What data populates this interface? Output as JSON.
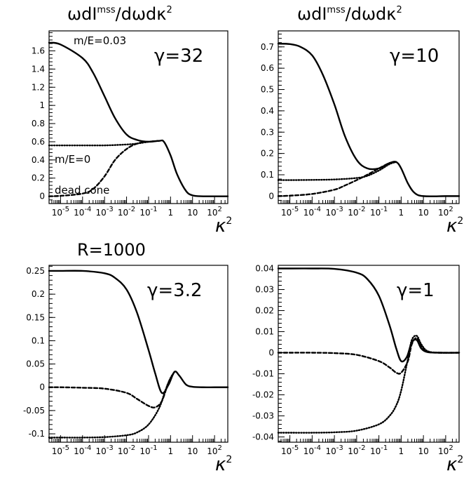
{
  "header": {
    "left_title": "ωdI",
    "right_title": "ωdI",
    "superscript": "mss",
    "fraction": "/dωdκ",
    "squared": "2",
    "r_label": "R=1000"
  },
  "chart_data": [
    {
      "type": "line",
      "panel": "top-left",
      "gamma_label": "γ=32",
      "xlabel": "κ",
      "xlabel_sup": "2",
      "x_scale": "log",
      "xlim": [
        3e-06,
        400
      ],
      "ylim": [
        -0.08,
        1.82
      ],
      "y_ticks": [
        0,
        0.2,
        0.4,
        0.6,
        0.8,
        1,
        1.2,
        1.4,
        1.6
      ],
      "y_tick_labels": [
        "0",
        "0.2",
        "0.4",
        "0.6",
        "0.8",
        "1",
        "1.2",
        "1.4",
        "1.6"
      ],
      "x_ticks": [
        1e-05,
        0.0001,
        0.001,
        0.01,
        0.1,
        1,
        10,
        100
      ],
      "x_tick_labels": [
        [
          "10",
          "-5"
        ],
        [
          "10",
          "-4"
        ],
        [
          "10",
          "-3"
        ],
        [
          "10",
          "-2"
        ],
        [
          "10",
          "-1"
        ],
        [
          "1",
          ""
        ],
        [
          "10",
          ""
        ],
        [
          "10",
          "2"
        ]
      ],
      "annotations": [
        "m/E=0.03",
        "m/E=0",
        "dead  cone"
      ],
      "series": [
        {
          "style": "solid",
          "x": [
            3e-06,
            1e-05,
            0.0001,
            0.0003,
            0.001,
            0.003,
            0.01,
            0.03,
            0.1,
            0.3,
            0.5,
            1,
            2,
            5,
            10,
            30,
            100,
            400
          ],
          "values": [
            1.69,
            1.67,
            1.52,
            1.36,
            1.1,
            0.86,
            0.68,
            0.62,
            0.6,
            0.61,
            0.6,
            0.45,
            0.24,
            0.06,
            0.01,
            0.0,
            0.0,
            0.0
          ]
        },
        {
          "style": "dotted",
          "x": [
            3e-06,
            1e-05,
            0.0001,
            0.001,
            0.01,
            0.03,
            0.1,
            0.3
          ],
          "values": [
            0.56,
            0.56,
            0.56,
            0.56,
            0.57,
            0.58,
            0.6,
            0.61
          ]
        },
        {
          "style": "dashed",
          "x": [
            3e-06,
            1e-05,
            0.0001,
            0.0003,
            0.001,
            0.003,
            0.01,
            0.03,
            0.1,
            0.3
          ],
          "values": [
            0.0,
            0.005,
            0.03,
            0.08,
            0.22,
            0.4,
            0.52,
            0.58,
            0.6,
            0.61
          ]
        }
      ]
    },
    {
      "type": "line",
      "panel": "top-right",
      "gamma_label": "γ=10",
      "xlabel": "κ",
      "xlabel_sup": "2",
      "x_scale": "log",
      "xlim": [
        3e-06,
        400
      ],
      "ylim": [
        -0.035,
        0.775
      ],
      "y_ticks": [
        0,
        0.1,
        0.2,
        0.3,
        0.4,
        0.5,
        0.6,
        0.7
      ],
      "y_tick_labels": [
        "0",
        "0.1",
        "0.2",
        "0.3",
        "0.4",
        "0.5",
        "0.6",
        "0.7"
      ],
      "x_ticks": [
        1e-05,
        0.0001,
        0.001,
        0.01,
        0.1,
        1,
        10,
        100
      ],
      "x_tick_labels": [
        [
          "10",
          "-5"
        ],
        [
          "10",
          "-4"
        ],
        [
          "10",
          "-3"
        ],
        [
          "10",
          "-2"
        ],
        [
          "10",
          "-1"
        ],
        [
          "1",
          ""
        ],
        [
          "10",
          ""
        ],
        [
          "10",
          "2"
        ]
      ],
      "series": [
        {
          "style": "solid",
          "x": [
            3e-06,
            1e-05,
            3e-05,
            0.0001,
            0.0003,
            0.001,
            0.003,
            0.01,
            0.03,
            0.1,
            0.3,
            0.6,
            1,
            2,
            4,
            10,
            100,
            400
          ],
          "values": [
            0.715,
            0.713,
            0.7,
            0.66,
            0.57,
            0.43,
            0.28,
            0.17,
            0.13,
            0.13,
            0.155,
            0.16,
            0.13,
            0.06,
            0.015,
            0.0,
            0.0,
            0.0
          ]
        },
        {
          "style": "dotted",
          "x": [
            3e-06,
            1e-05,
            0.0001,
            0.001,
            0.01,
            0.03,
            0.1,
            0.3,
            0.6
          ],
          "values": [
            0.075,
            0.075,
            0.076,
            0.078,
            0.085,
            0.095,
            0.12,
            0.15,
            0.16
          ]
        },
        {
          "style": "dashed",
          "x": [
            3e-06,
            1e-05,
            0.0001,
            0.001,
            0.003,
            0.01,
            0.03,
            0.1,
            0.3,
            0.6
          ],
          "values": [
            0.0,
            0.002,
            0.01,
            0.03,
            0.05,
            0.075,
            0.1,
            0.13,
            0.155,
            0.16
          ]
        }
      ]
    },
    {
      "type": "line",
      "panel": "bottom-left",
      "gamma_label": "γ=3.2",
      "xlabel": "κ",
      "xlabel_sup": "2",
      "x_scale": "log",
      "xlim": [
        3e-06,
        400
      ],
      "ylim": [
        -0.118,
        0.262
      ],
      "y_ticks": [
        -0.1,
        -0.05,
        0,
        0.05,
        0.1,
        0.15,
        0.2,
        0.25
      ],
      "y_tick_labels": [
        "-0.1",
        "-0.05",
        "0",
        "0.05",
        "0.1",
        "0.15",
        "0.2",
        "0.25"
      ],
      "x_ticks": [
        1e-05,
        0.0001,
        0.001,
        0.01,
        0.1,
        1,
        10,
        100
      ],
      "x_tick_labels": [
        [
          "10",
          "-5"
        ],
        [
          "10",
          "-4"
        ],
        [
          "10",
          "-3"
        ],
        [
          "10",
          "-2"
        ],
        [
          "10",
          "-1"
        ],
        [
          "1",
          ""
        ],
        [
          "10",
          ""
        ],
        [
          "10",
          "2"
        ]
      ],
      "series": [
        {
          "style": "solid",
          "x": [
            3e-06,
            1e-05,
            0.0001,
            0.001,
            0.003,
            0.01,
            0.03,
            0.1,
            0.2,
            0.4,
            0.8,
            1.5,
            2.5,
            5,
            10,
            30,
            100,
            400
          ],
          "values": [
            0.25,
            0.25,
            0.25,
            0.245,
            0.235,
            0.21,
            0.16,
            0.08,
            0.03,
            -0.012,
            0.005,
            0.033,
            0.025,
            0.006,
            0.001,
            0.0,
            0.0,
            0.0
          ]
        },
        {
          "style": "dotted",
          "x": [
            3e-06,
            1e-05,
            0.0001,
            0.001,
            0.01,
            0.03,
            0.1,
            0.3,
            0.6,
            1,
            1.5
          ],
          "values": [
            -0.108,
            -0.108,
            -0.108,
            -0.107,
            -0.103,
            -0.097,
            -0.08,
            -0.045,
            -0.005,
            0.02,
            0.033
          ]
        },
        {
          "style": "dashed",
          "x": [
            3e-06,
            1e-05,
            0.0001,
            0.001,
            0.01,
            0.03,
            0.1,
            0.2,
            0.4,
            0.8,
            1.5
          ],
          "values": [
            0.0,
            0.0,
            -0.001,
            -0.003,
            -0.012,
            -0.025,
            -0.04,
            -0.043,
            -0.03,
            0.01,
            0.033
          ]
        }
      ]
    },
    {
      "type": "line",
      "panel": "bottom-right",
      "gamma_label": "γ=1",
      "xlabel": "κ",
      "xlabel_sup": "2",
      "x_scale": "log",
      "xlim": [
        3e-06,
        400
      ],
      "ylim": [
        -0.0425,
        0.0415
      ],
      "y_ticks": [
        -0.04,
        -0.03,
        -0.02,
        -0.01,
        0,
        0.01,
        0.02,
        0.03,
        0.04
      ],
      "y_tick_labels": [
        "-0.04",
        "-0.03",
        "-0.02",
        "-0.01",
        "0",
        "0.01",
        "0.02",
        "0.03",
        "0.04"
      ],
      "x_ticks": [
        1e-05,
        0.0001,
        0.001,
        0.01,
        0.1,
        1,
        10,
        100
      ],
      "x_tick_labels": [
        [
          "10",
          "-5"
        ],
        [
          "10",
          "-4"
        ],
        [
          "10",
          "-3"
        ],
        [
          "10",
          "-2"
        ],
        [
          "10",
          "-1"
        ],
        [
          "1",
          ""
        ],
        [
          "10",
          ""
        ],
        [
          "10",
          "2"
        ]
      ],
      "series": [
        {
          "style": "solid",
          "x": [
            3e-06,
            1e-05,
            0.0001,
            0.001,
            0.01,
            0.03,
            0.1,
            0.3,
            0.6,
            1,
            1.8,
            3,
            5,
            8,
            15,
            50,
            400
          ],
          "values": [
            0.04,
            0.04,
            0.04,
            0.0398,
            0.038,
            0.035,
            0.027,
            0.013,
            0.002,
            -0.004,
            -0.002,
            0.005,
            0.006,
            0.002,
            0.0003,
            0.0,
            0.0
          ]
        },
        {
          "style": "dotted",
          "x": [
            3e-06,
            1e-05,
            0.0001,
            0.001,
            0.01,
            0.1,
            0.3,
            0.6,
            1,
            2,
            3,
            5,
            8,
            15,
            50,
            400
          ],
          "values": [
            -0.038,
            -0.038,
            -0.038,
            -0.0378,
            -0.037,
            -0.034,
            -0.03,
            -0.025,
            -0.018,
            -0.003,
            0.006,
            0.008,
            0.004,
            0.0008,
            0.0,
            0.0
          ]
        },
        {
          "style": "dashed",
          "x": [
            3e-06,
            1e-05,
            0.0001,
            0.001,
            0.01,
            0.1,
            0.3,
            0.6,
            1,
            2,
            3,
            5,
            8,
            15,
            50,
            400
          ],
          "values": [
            0.0,
            0.0,
            0.0,
            -0.0002,
            -0.001,
            -0.004,
            -0.007,
            -0.0095,
            -0.0095,
            -0.004,
            0.004,
            0.007,
            0.003,
            0.0005,
            0.0,
            0.0
          ]
        }
      ]
    }
  ]
}
